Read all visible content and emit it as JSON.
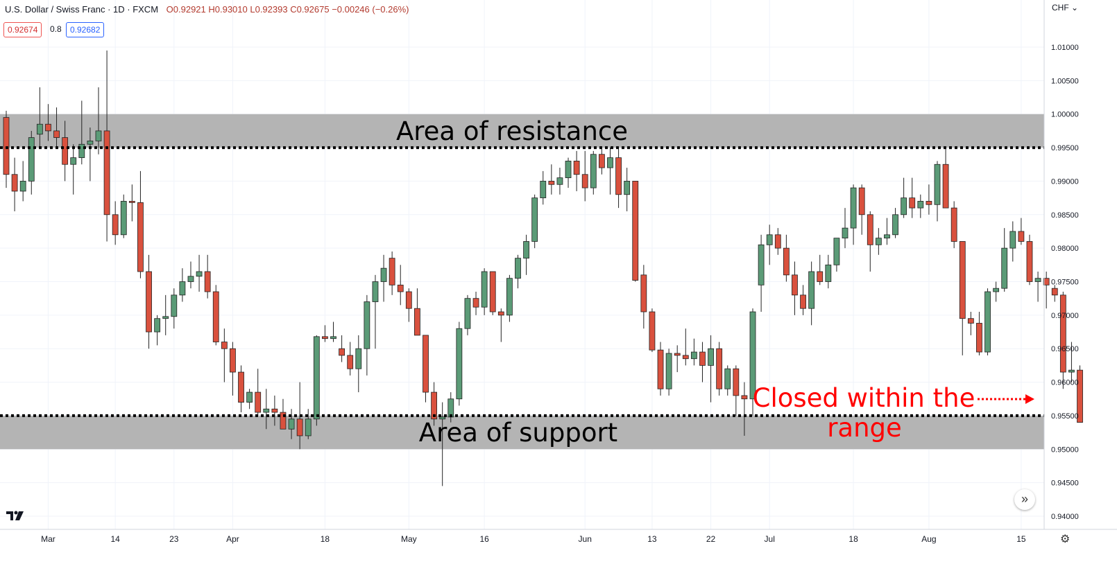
{
  "header": {
    "symbol": "U.S. Dollar / Swiss Franc · 1D · FXCM",
    "ohlc": "O0.92921 H0.93010 L0.92393 C0.92675 −0.00246 (−0.26%)"
  },
  "quote": {
    "sell": "0.92674",
    "spread": "0.8",
    "buy": "0.92682"
  },
  "currency": "CHF",
  "colors": {
    "up": "#5b9b77",
    "down": "#d9513e",
    "wick": "#222222",
    "zone": "#b0b0b0",
    "annotation": "#ff0000",
    "grid": "#f0f3fa"
  },
  "chart_data": {
    "type": "candlestick",
    "ylim": [
      0.9355,
      1.0155
    ],
    "y_ticks": [
      0.94,
      0.945,
      0.95,
      0.955,
      0.96,
      0.965,
      0.97,
      0.975,
      0.98,
      0.985,
      0.99,
      0.995,
      1.0,
      1.005,
      1.01
    ],
    "y_tick_labels": [
      "0.94000",
      "0.94500",
      "0.95000",
      "0.95500",
      "0.96000",
      "0.96500",
      "0.97000",
      "0.97500",
      "0.98000",
      "0.98500",
      "0.99000",
      "0.99500",
      "1.00000",
      "1.00500",
      "1.01000"
    ],
    "x_tick_labels": [
      {
        "label": "Mar",
        "index": 5
      },
      {
        "label": "14",
        "index": 13
      },
      {
        "label": "23",
        "index": 20
      },
      {
        "label": "Apr",
        "index": 27
      },
      {
        "label": "18",
        "index": 38
      },
      {
        "label": "May",
        "index": 48
      },
      {
        "label": "16",
        "index": 57
      },
      {
        "label": "Jun",
        "index": 69
      },
      {
        "label": "13",
        "index": 77
      },
      {
        "label": "22",
        "index": 84
      },
      {
        "label": "Jul",
        "index": 91
      },
      {
        "label": "18",
        "index": 101
      },
      {
        "label": "Aug",
        "index": 110
      },
      {
        "label": "15",
        "index": 121
      }
    ],
    "candles": [
      {
        "o": 0.9995,
        "h": 1.0005,
        "l": 0.989,
        "c": 0.991
      },
      {
        "o": 0.991,
        "h": 0.9935,
        "l": 0.9855,
        "c": 0.9885
      },
      {
        "o": 0.9885,
        "h": 0.993,
        "l": 0.987,
        "c": 0.99
      },
      {
        "o": 0.99,
        "h": 0.9975,
        "l": 0.988,
        "c": 0.9965
      },
      {
        "o": 0.997,
        "h": 1.004,
        "l": 0.995,
        "c": 0.9985
      },
      {
        "o": 0.9985,
        "h": 1.0015,
        "l": 0.996,
        "c": 0.9975
      },
      {
        "o": 0.9975,
        "h": 1.001,
        "l": 0.995,
        "c": 0.9965
      },
      {
        "o": 0.9965,
        "h": 0.999,
        "l": 0.99,
        "c": 0.9925
      },
      {
        "o": 0.9925,
        "h": 0.9955,
        "l": 0.988,
        "c": 0.9935
      },
      {
        "o": 0.9935,
        "h": 1.002,
        "l": 0.9925,
        "c": 0.9955
      },
      {
        "o": 0.9955,
        "h": 0.998,
        "l": 0.99,
        "c": 0.996
      },
      {
        "o": 0.996,
        "h": 1.004,
        "l": 0.994,
        "c": 0.9975
      },
      {
        "o": 0.9975,
        "h": 1.0095,
        "l": 0.981,
        "c": 0.985
      },
      {
        "o": 0.985,
        "h": 0.987,
        "l": 0.9805,
        "c": 0.982
      },
      {
        "o": 0.982,
        "h": 0.988,
        "l": 0.9815,
        "c": 0.987
      },
      {
        "o": 0.987,
        "h": 0.9895,
        "l": 0.984,
        "c": 0.9868
      },
      {
        "o": 0.9868,
        "h": 0.9915,
        "l": 0.9755,
        "c": 0.9765
      },
      {
        "o": 0.9765,
        "h": 0.979,
        "l": 0.965,
        "c": 0.9675
      },
      {
        "o": 0.9675,
        "h": 0.97,
        "l": 0.9655,
        "c": 0.9695
      },
      {
        "o": 0.9695,
        "h": 0.973,
        "l": 0.967,
        "c": 0.9698
      },
      {
        "o": 0.9698,
        "h": 0.974,
        "l": 0.968,
        "c": 0.973
      },
      {
        "o": 0.973,
        "h": 0.977,
        "l": 0.972,
        "c": 0.975
      },
      {
        "o": 0.975,
        "h": 0.978,
        "l": 0.974,
        "c": 0.9758
      },
      {
        "o": 0.9758,
        "h": 0.979,
        "l": 0.9735,
        "c": 0.9765
      },
      {
        "o": 0.9765,
        "h": 0.979,
        "l": 0.9725,
        "c": 0.9735
      },
      {
        "o": 0.9735,
        "h": 0.9745,
        "l": 0.9655,
        "c": 0.966
      },
      {
        "o": 0.966,
        "h": 0.968,
        "l": 0.96,
        "c": 0.965
      },
      {
        "o": 0.965,
        "h": 0.966,
        "l": 0.958,
        "c": 0.9615
      },
      {
        "o": 0.9615,
        "h": 0.9625,
        "l": 0.9555,
        "c": 0.957
      },
      {
        "o": 0.957,
        "h": 0.959,
        "l": 0.956,
        "c": 0.9585
      },
      {
        "o": 0.9585,
        "h": 0.962,
        "l": 0.955,
        "c": 0.9555
      },
      {
        "o": 0.9555,
        "h": 0.959,
        "l": 0.953,
        "c": 0.956
      },
      {
        "o": 0.956,
        "h": 0.958,
        "l": 0.9535,
        "c": 0.9555
      },
      {
        "o": 0.9555,
        "h": 0.9575,
        "l": 0.953,
        "c": 0.953
      },
      {
        "o": 0.953,
        "h": 0.956,
        "l": 0.9515,
        "c": 0.9545
      },
      {
        "o": 0.9545,
        "h": 0.96,
        "l": 0.95,
        "c": 0.952
      },
      {
        "o": 0.952,
        "h": 0.956,
        "l": 0.9515,
        "c": 0.9545
      },
      {
        "o": 0.9545,
        "h": 0.967,
        "l": 0.9535,
        "c": 0.9668
      },
      {
        "o": 0.9668,
        "h": 0.9685,
        "l": 0.966,
        "c": 0.9665
      },
      {
        "o": 0.9665,
        "h": 0.969,
        "l": 0.966,
        "c": 0.9668
      },
      {
        "o": 0.965,
        "h": 0.967,
        "l": 0.963,
        "c": 0.964
      },
      {
        "o": 0.964,
        "h": 0.966,
        "l": 0.961,
        "c": 0.962
      },
      {
        "o": 0.962,
        "h": 0.967,
        "l": 0.9585,
        "c": 0.965
      },
      {
        "o": 0.965,
        "h": 0.973,
        "l": 0.961,
        "c": 0.972
      },
      {
        "o": 0.972,
        "h": 0.976,
        "l": 0.965,
        "c": 0.975
      },
      {
        "o": 0.975,
        "h": 0.979,
        "l": 0.972,
        "c": 0.977
      },
      {
        "o": 0.9785,
        "h": 0.9795,
        "l": 0.973,
        "c": 0.9745
      },
      {
        "o": 0.9745,
        "h": 0.9775,
        "l": 0.9715,
        "c": 0.9735
      },
      {
        "o": 0.9735,
        "h": 0.974,
        "l": 0.969,
        "c": 0.971
      },
      {
        "o": 0.971,
        "h": 0.974,
        "l": 0.9675,
        "c": 0.967
      },
      {
        "o": 0.967,
        "h": 0.967,
        "l": 0.957,
        "c": 0.9585
      },
      {
        "o": 0.9585,
        "h": 0.96,
        "l": 0.9535,
        "c": 0.9545
      },
      {
        "o": 0.9545,
        "h": 0.957,
        "l": 0.9445,
        "c": 0.9548
      },
      {
        "o": 0.9548,
        "h": 0.9585,
        "l": 0.954,
        "c": 0.9575
      },
      {
        "o": 0.9575,
        "h": 0.969,
        "l": 0.9565,
        "c": 0.968
      },
      {
        "o": 0.968,
        "h": 0.973,
        "l": 0.967,
        "c": 0.9725
      },
      {
        "o": 0.9725,
        "h": 0.9735,
        "l": 0.97,
        "c": 0.9712
      },
      {
        "o": 0.9712,
        "h": 0.977,
        "l": 0.97,
        "c": 0.9765
      },
      {
        "o": 0.9765,
        "h": 0.9765,
        "l": 0.97,
        "c": 0.9705
      },
      {
        "o": 0.9705,
        "h": 0.971,
        "l": 0.966,
        "c": 0.97
      },
      {
        "o": 0.97,
        "h": 0.976,
        "l": 0.969,
        "c": 0.9755
      },
      {
        "o": 0.9755,
        "h": 0.979,
        "l": 0.974,
        "c": 0.9785
      },
      {
        "o": 0.9785,
        "h": 0.982,
        "l": 0.976,
        "c": 0.981
      },
      {
        "o": 0.981,
        "h": 0.988,
        "l": 0.98,
        "c": 0.9875
      },
      {
        "o": 0.9875,
        "h": 0.9915,
        "l": 0.9865,
        "c": 0.99
      },
      {
        "o": 0.99,
        "h": 0.9925,
        "l": 0.988,
        "c": 0.9895
      },
      {
        "o": 0.9895,
        "h": 0.992,
        "l": 0.988,
        "c": 0.9905
      },
      {
        "o": 0.9905,
        "h": 0.9935,
        "l": 0.989,
        "c": 0.993
      },
      {
        "o": 0.993,
        "h": 0.9945,
        "l": 0.9885,
        "c": 0.991
      },
      {
        "o": 0.991,
        "h": 0.9945,
        "l": 0.987,
        "c": 0.989
      },
      {
        "o": 0.989,
        "h": 0.9945,
        "l": 0.988,
        "c": 0.994
      },
      {
        "o": 0.994,
        "h": 0.995,
        "l": 0.991,
        "c": 0.992
      },
      {
        "o": 0.992,
        "h": 0.995,
        "l": 0.988,
        "c": 0.9935
      },
      {
        "o": 0.9935,
        "h": 0.995,
        "l": 0.986,
        "c": 0.988
      },
      {
        "o": 0.988,
        "h": 0.992,
        "l": 0.9855,
        "c": 0.99
      },
      {
        "o": 0.99,
        "h": 0.99,
        "l": 0.975,
        "c": 0.9752
      },
      {
        "o": 0.976,
        "h": 0.9775,
        "l": 0.968,
        "c": 0.9705
      },
      {
        "o": 0.9705,
        "h": 0.971,
        "l": 0.9645,
        "c": 0.9648
      },
      {
        "o": 0.9648,
        "h": 0.966,
        "l": 0.958,
        "c": 0.959
      },
      {
        "o": 0.959,
        "h": 0.965,
        "l": 0.958,
        "c": 0.9643
      },
      {
        "o": 0.9643,
        "h": 0.9655,
        "l": 0.9615,
        "c": 0.964
      },
      {
        "o": 0.964,
        "h": 0.968,
        "l": 0.9625,
        "c": 0.9635
      },
      {
        "o": 0.9635,
        "h": 0.9665,
        "l": 0.9625,
        "c": 0.9645
      },
      {
        "o": 0.9645,
        "h": 0.966,
        "l": 0.96,
        "c": 0.9625
      },
      {
        "o": 0.9625,
        "h": 0.967,
        "l": 0.957,
        "c": 0.965
      },
      {
        "o": 0.965,
        "h": 0.966,
        "l": 0.958,
        "c": 0.959
      },
      {
        "o": 0.959,
        "h": 0.9625,
        "l": 0.958,
        "c": 0.962
      },
      {
        "o": 0.962,
        "h": 0.9625,
        "l": 0.955,
        "c": 0.958
      },
      {
        "o": 0.958,
        "h": 0.96,
        "l": 0.952,
        "c": 0.9575
      },
      {
        "o": 0.9575,
        "h": 0.971,
        "l": 0.955,
        "c": 0.9705
      },
      {
        "o": 0.9745,
        "h": 0.982,
        "l": 0.9705,
        "c": 0.9805
      },
      {
        "o": 0.9805,
        "h": 0.9835,
        "l": 0.9775,
        "c": 0.982
      },
      {
        "o": 0.982,
        "h": 0.983,
        "l": 0.979,
        "c": 0.98
      },
      {
        "o": 0.98,
        "h": 0.982,
        "l": 0.975,
        "c": 0.976
      },
      {
        "o": 0.976,
        "h": 0.978,
        "l": 0.97,
        "c": 0.973
      },
      {
        "o": 0.973,
        "h": 0.9745,
        "l": 0.97,
        "c": 0.971
      },
      {
        "o": 0.971,
        "h": 0.978,
        "l": 0.9685,
        "c": 0.9765
      },
      {
        "o": 0.9765,
        "h": 0.979,
        "l": 0.9745,
        "c": 0.975
      },
      {
        "o": 0.975,
        "h": 0.979,
        "l": 0.974,
        "c": 0.9775
      },
      {
        "o": 0.9775,
        "h": 0.981,
        "l": 0.9765,
        "c": 0.9815
      },
      {
        "o": 0.9815,
        "h": 0.986,
        "l": 0.98,
        "c": 0.983
      },
      {
        "o": 0.983,
        "h": 0.9895,
        "l": 0.9805,
        "c": 0.989
      },
      {
        "o": 0.989,
        "h": 0.9895,
        "l": 0.982,
        "c": 0.985
      },
      {
        "o": 0.985,
        "h": 0.9855,
        "l": 0.9765,
        "c": 0.9805
      },
      {
        "o": 0.9805,
        "h": 0.983,
        "l": 0.979,
        "c": 0.9815
      },
      {
        "o": 0.9815,
        "h": 0.9845,
        "l": 0.9805,
        "c": 0.982
      },
      {
        "o": 0.982,
        "h": 0.986,
        "l": 0.9815,
        "c": 0.985
      },
      {
        "o": 0.985,
        "h": 0.9905,
        "l": 0.9845,
        "c": 0.9875
      },
      {
        "o": 0.9875,
        "h": 0.9905,
        "l": 0.9845,
        "c": 0.986
      },
      {
        "o": 0.986,
        "h": 0.988,
        "l": 0.9845,
        "c": 0.987
      },
      {
        "o": 0.987,
        "h": 0.9895,
        "l": 0.985,
        "c": 0.9865
      },
      {
        "o": 0.9865,
        "h": 0.993,
        "l": 0.984,
        "c": 0.9925
      },
      {
        "o": 0.9925,
        "h": 0.995,
        "l": 0.986,
        "c": 0.986
      },
      {
        "o": 0.986,
        "h": 0.987,
        "l": 0.98,
        "c": 0.981
      },
      {
        "o": 0.981,
        "h": 0.981,
        "l": 0.964,
        "c": 0.9695
      },
      {
        "o": 0.9695,
        "h": 0.9705,
        "l": 0.967,
        "c": 0.9688
      },
      {
        "o": 0.9688,
        "h": 0.9705,
        "l": 0.964,
        "c": 0.9645
      },
      {
        "o": 0.9645,
        "h": 0.974,
        "l": 0.964,
        "c": 0.9735
      },
      {
        "o": 0.9735,
        "h": 0.975,
        "l": 0.972,
        "c": 0.974
      },
      {
        "o": 0.974,
        "h": 0.983,
        "l": 0.9735,
        "c": 0.98
      },
      {
        "o": 0.98,
        "h": 0.984,
        "l": 0.978,
        "c": 0.9825
      },
      {
        "o": 0.9825,
        "h": 0.9845,
        "l": 0.9805,
        "c": 0.981
      },
      {
        "o": 0.981,
        "h": 0.982,
        "l": 0.9745,
        "c": 0.975
      },
      {
        "o": 0.975,
        "h": 0.9765,
        "l": 0.972,
        "c": 0.9755
      },
      {
        "o": 0.9755,
        "h": 0.9765,
        "l": 0.971,
        "c": 0.9745
      },
      {
        "o": 0.974,
        "h": 0.9745,
        "l": 0.972,
        "c": 0.973
      },
      {
        "o": 0.973,
        "h": 0.9735,
        "l": 0.959,
        "c": 0.9615
      },
      {
        "o": 0.9615,
        "h": 0.966,
        "l": 0.96,
        "c": 0.9618
      },
      {
        "o": 0.9618,
        "h": 0.9625,
        "l": 0.954,
        "c": 0.954
      }
    ],
    "zones": [
      {
        "name": "resistance",
        "label": "Area of resistance",
        "from": 0.995,
        "to": 1.0,
        "line": 0.995
      },
      {
        "name": "support",
        "label": "Area of support",
        "from": 0.95,
        "to": 0.955,
        "line": 0.955
      }
    ],
    "annotation": {
      "line1": "Closed within the",
      "line2": "range"
    }
  }
}
